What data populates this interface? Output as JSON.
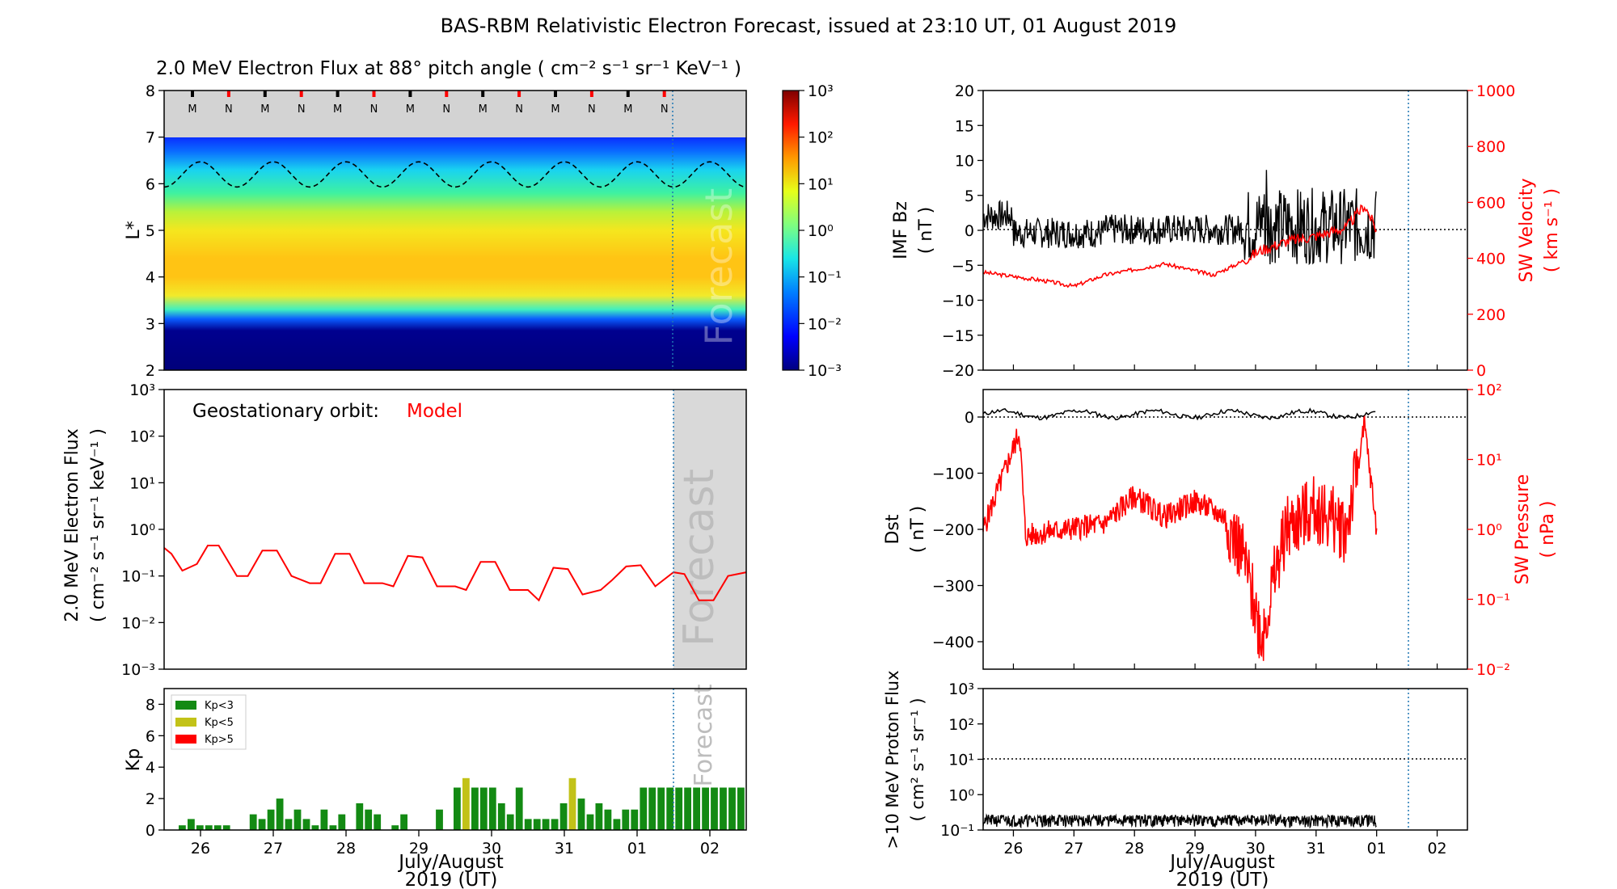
{
  "main_title": "BAS-RBM Relativistic Electron Forecast, issued at 23:10 UT, 01 August 2019",
  "forecast_label": "Forecast",
  "xaxis": {
    "days": [
      "26",
      "27",
      "28",
      "29",
      "30",
      "31",
      "01",
      "02"
    ],
    "label_line1": "July/August",
    "label_line2": "2019 (UT)"
  },
  "colors": {
    "model": "#ff0000",
    "forecast_bg": "#d9d9d9",
    "kp_low": "#138a13",
    "kp_mid": "#c2c218",
    "kp_high": "#ff0000",
    "forecast_line": "#1f77b4"
  },
  "flux_map": {
    "title": "2.0 MeV Electron Flux at 88° pitch angle ( cm⁻² s⁻¹ sr⁻¹ KeV⁻¹ )",
    "ylabel": "L*",
    "yticks": [
      "2",
      "3",
      "4",
      "5",
      "6",
      "7",
      "8"
    ],
    "mn_markers": [
      "M",
      "N",
      "M",
      "N",
      "M",
      "N",
      "M",
      "N",
      "M",
      "N",
      "M",
      "N",
      "M",
      "N"
    ],
    "colorbar_ticks": [
      "10³",
      "10²",
      "10¹",
      "10⁰",
      "10⁻¹",
      "10⁻²",
      "10⁻³"
    ]
  },
  "geo": {
    "label": "Geostationary orbit:",
    "model_label": "Model",
    "ylabel1": "2.0 MeV Electron Flux",
    "ylabel2": "( cm⁻² s⁻¹ sr⁻¹ keV⁻¹ )",
    "yticks": [
      "10³",
      "10²",
      "10¹",
      "10⁰",
      "10⁻¹",
      "10⁻²",
      "10⁻³"
    ]
  },
  "kp": {
    "ylabel": "Kp",
    "yticks": [
      "0",
      "2",
      "4",
      "6",
      "8"
    ],
    "legend": [
      "Kp<3",
      "Kp<5",
      "Kp>5"
    ]
  },
  "imf": {
    "ylabel1": "IMF Bz",
    "ylabel2": "( nT )",
    "yticks": [
      "20",
      "15",
      "10",
      "5",
      "0",
      "−5",
      "−10",
      "−15",
      "−20"
    ],
    "ylabel_right1": "SW Velocity",
    "ylabel_right2": "( km s⁻¹ )",
    "yticks_right": [
      "1000",
      "800",
      "600",
      "400",
      "200",
      "0"
    ]
  },
  "dst": {
    "ylabel1": "Dst",
    "ylabel2": "( nT )",
    "yticks": [
      "0",
      "−100",
      "−200",
      "−300",
      "−400"
    ],
    "ylabel_right1": "SW Pressure",
    "ylabel_right2": "( nPa )",
    "yticks_right": [
      "10²",
      "10¹",
      "10⁰",
      "10⁻¹",
      "10⁻²"
    ]
  },
  "proton": {
    "ylabel1": ">10 MeV Proton Flux",
    "ylabel2": "( cm² s⁻¹ sr⁻¹ )",
    "yticks": [
      "10³",
      "10²",
      "10¹",
      "10⁰",
      "10⁻¹"
    ]
  },
  "chart_data": [
    {
      "type": "line",
      "panel": "Geostationary orbit 2.0 MeV electron flux",
      "y_scale": "log",
      "ylim": [
        0.001,
        1000
      ],
      "x_range_days": [
        "25 Jul 12:00",
        "02 Aug 12:00"
      ],
      "series": [
        {
          "name": "Model",
          "x_days": [
            0.0,
            0.1,
            0.25,
            0.45,
            0.6,
            0.75,
            1.0,
            1.15,
            1.35,
            1.55,
            1.75,
            2.0,
            2.15,
            2.35,
            2.55,
            2.75,
            3.0,
            3.15,
            3.35,
            3.55,
            3.75,
            4.0,
            4.15,
            4.35,
            4.55,
            4.75,
            5.0,
            5.15,
            5.35,
            5.55,
            5.75,
            6.0,
            6.15,
            6.35,
            6.55,
            6.75,
            7.0,
            7.15,
            7.35,
            7.55,
            7.75,
            8.0
          ],
          "values": [
            0.4,
            0.3,
            0.13,
            0.18,
            0.45,
            0.45,
            0.1,
            0.1,
            0.35,
            0.35,
            0.1,
            0.07,
            0.07,
            0.3,
            0.3,
            0.07,
            0.07,
            0.06,
            0.27,
            0.25,
            0.06,
            0.06,
            0.05,
            0.2,
            0.2,
            0.05,
            0.05,
            0.03,
            0.15,
            0.14,
            0.04,
            0.05,
            0.08,
            0.16,
            0.17,
            0.06,
            0.12,
            0.11,
            0.03,
            0.03,
            0.1,
            0.12
          ]
        }
      ]
    },
    {
      "type": "bar",
      "panel": "Kp",
      "ylim": [
        0,
        9
      ],
      "categories_3h": "3-hour bins from 25 Jul 18:00",
      "values": [
        0.3,
        0.7,
        0.3,
        0.3,
        0.3,
        0.3,
        0,
        0,
        1,
        0.7,
        1.3,
        2,
        0.7,
        1.3,
        0.7,
        0.3,
        1.3,
        0.3,
        1,
        0,
        1.7,
        1.3,
        1,
        0,
        0.3,
        1,
        0,
        0,
        0,
        1.3,
        0,
        2.7,
        3.3,
        2.7,
        2.7,
        2.7,
        1.7,
        1,
        2.7,
        0.7,
        0.7,
        0.7,
        0.7,
        1.7,
        3.3,
        2,
        1,
        1.7,
        1.3,
        0.7,
        1.3,
        1.3,
        2.7,
        2.7,
        2.7,
        2.7,
        2.7,
        2.7,
        2.7,
        2.7,
        2.7,
        2.7,
        2.7,
        2.7
      ]
    },
    {
      "type": "line",
      "panel": "IMF Bz and SW Velocity",
      "ylim": [
        -20,
        20
      ],
      "ylim_right": [
        0,
        1000
      ],
      "series": [
        {
          "name": "IMF Bz",
          "approx_range": [
            -8,
            8
          ]
        },
        {
          "name": "SW Velocity",
          "approx_points_days": [
            0,
            1,
            1.5,
            2,
            3,
            3.8,
            4.2,
            4.6,
            5,
            5.5,
            6,
            6.3,
            6.5
          ],
          "values": [
            350,
            320,
            300,
            340,
            380,
            340,
            380,
            430,
            460,
            480,
            510,
            590,
            500
          ]
        }
      ]
    },
    {
      "type": "line",
      "panel": "Dst and SW Pressure",
      "ylim": [
        -450,
        20
      ],
      "ylim_right_log": [
        0.01,
        100
      ],
      "series": [
        {
          "name": "Dst",
          "approx_range": [
            -10,
            20
          ]
        },
        {
          "name": "SW Pressure",
          "approx_points_days": [
            0,
            0.6,
            0.7,
            1,
            2,
            2.5,
            3,
            3.5,
            4.0,
            4.3,
            4.6,
            5,
            5.5,
            6,
            6.3,
            6.5
          ],
          "values": [
            1,
            25,
            0.8,
            0.9,
            1.2,
            3,
            1.5,
            2.5,
            1.5,
            0.4,
            0.03,
            1,
            2,
            1,
            30,
            1
          ]
        }
      ]
    },
    {
      "type": "line",
      "panel": ">10 MeV Proton Flux",
      "y_scale": "log",
      "ylim": [
        0.1,
        1000
      ],
      "threshold": 10,
      "series": [
        {
          "name": "Proton flux",
          "approx_level": 0.2
        }
      ]
    }
  ]
}
